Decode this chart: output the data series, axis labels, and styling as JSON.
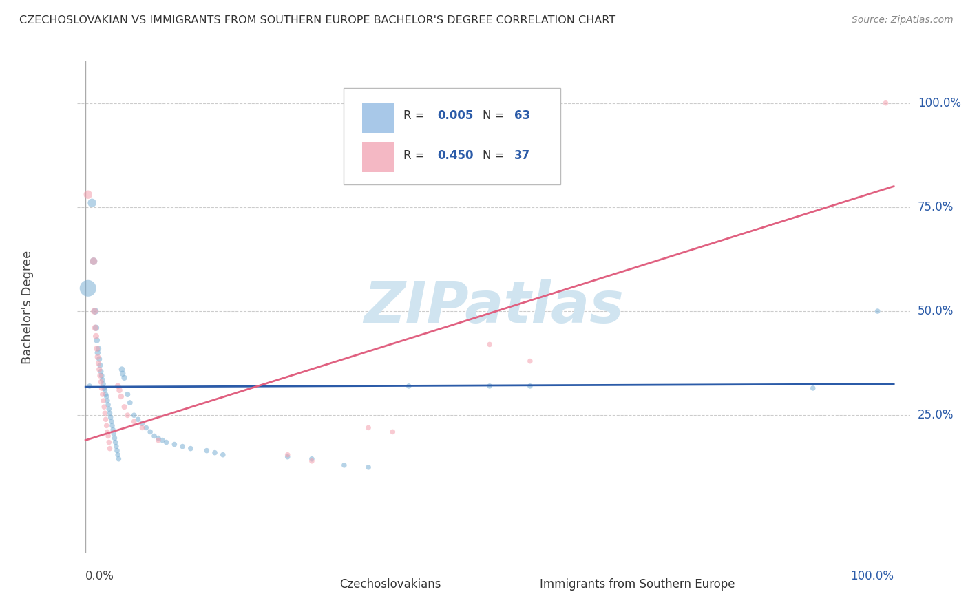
{
  "title": "CZECHOSLOVAKIAN VS IMMIGRANTS FROM SOUTHERN EUROPE BACHELOR'S DEGREE CORRELATION CHART",
  "source": "Source: ZipAtlas.com",
  "ylabel": "Bachelor's Degree",
  "ytick_labels": [
    "25.0%",
    "50.0%",
    "75.0%",
    "100.0%"
  ],
  "ytick_positions": [
    0.25,
    0.5,
    0.75,
    1.0
  ],
  "xtick_labels": [
    "0.0%",
    "100.0%"
  ],
  "xtick_positions": [
    0.0,
    1.0
  ],
  "xlim": [
    -0.01,
    1.02
  ],
  "ylim": [
    -0.08,
    1.1
  ],
  "color_blue": "#7BAFD4",
  "color_pink": "#F4A0AE",
  "color_blue_line": "#2B5BA8",
  "color_pink_line": "#E06080",
  "color_blue_legend_box": "#A8C8E8",
  "color_pink_legend_box": "#F4B8C4",
  "watermark_text": "ZIPatlas",
  "watermark_color": "#D0E4F0",
  "background_color": "#FFFFFF",
  "grid_color": "#CCCCCC",
  "blue_line_x": [
    0.0,
    1.0
  ],
  "blue_line_y": [
    0.318,
    0.325
  ],
  "pink_line_x": [
    0.0,
    1.0
  ],
  "pink_line_y": [
    0.19,
    0.8
  ],
  "blue_dots": [
    [
      0.003,
      0.555
    ],
    [
      0.008,
      0.76
    ],
    [
      0.01,
      0.62
    ],
    [
      0.012,
      0.5
    ],
    [
      0.013,
      0.46
    ],
    [
      0.014,
      0.43
    ],
    [
      0.015,
      0.4
    ],
    [
      0.016,
      0.41
    ],
    [
      0.017,
      0.385
    ],
    [
      0.018,
      0.37
    ],
    [
      0.019,
      0.355
    ],
    [
      0.02,
      0.345
    ],
    [
      0.021,
      0.335
    ],
    [
      0.022,
      0.325
    ],
    [
      0.023,
      0.315
    ],
    [
      0.024,
      0.31
    ],
    [
      0.025,
      0.3
    ],
    [
      0.026,
      0.295
    ],
    [
      0.027,
      0.285
    ],
    [
      0.028,
      0.275
    ],
    [
      0.029,
      0.265
    ],
    [
      0.03,
      0.255
    ],
    [
      0.031,
      0.245
    ],
    [
      0.032,
      0.235
    ],
    [
      0.033,
      0.225
    ],
    [
      0.034,
      0.215
    ],
    [
      0.035,
      0.205
    ],
    [
      0.036,
      0.195
    ],
    [
      0.037,
      0.185
    ],
    [
      0.038,
      0.175
    ],
    [
      0.039,
      0.165
    ],
    [
      0.04,
      0.155
    ],
    [
      0.041,
      0.145
    ],
    [
      0.045,
      0.36
    ],
    [
      0.046,
      0.35
    ],
    [
      0.048,
      0.34
    ],
    [
      0.052,
      0.3
    ],
    [
      0.055,
      0.28
    ],
    [
      0.06,
      0.25
    ],
    [
      0.065,
      0.24
    ],
    [
      0.07,
      0.23
    ],
    [
      0.075,
      0.22
    ],
    [
      0.08,
      0.21
    ],
    [
      0.085,
      0.2
    ],
    [
      0.09,
      0.195
    ],
    [
      0.095,
      0.19
    ],
    [
      0.1,
      0.185
    ],
    [
      0.11,
      0.18
    ],
    [
      0.12,
      0.175
    ],
    [
      0.13,
      0.17
    ],
    [
      0.15,
      0.165
    ],
    [
      0.16,
      0.16
    ],
    [
      0.17,
      0.155
    ],
    [
      0.25,
      0.15
    ],
    [
      0.28,
      0.145
    ],
    [
      0.32,
      0.13
    ],
    [
      0.35,
      0.125
    ],
    [
      0.4,
      0.32
    ],
    [
      0.5,
      0.32
    ],
    [
      0.55,
      0.32
    ],
    [
      0.9,
      0.315
    ],
    [
      0.98,
      0.5
    ],
    [
      0.005,
      0.32
    ]
  ],
  "blue_sizes": [
    300,
    80,
    60,
    50,
    45,
    40,
    38,
    36,
    35,
    34,
    33,
    32,
    31,
    30,
    30,
    30,
    30,
    30,
    30,
    30,
    30,
    30,
    30,
    30,
    30,
    30,
    30,
    30,
    30,
    30,
    30,
    30,
    30,
    40,
    38,
    36,
    34,
    32,
    30,
    30,
    30,
    30,
    30,
    30,
    30,
    30,
    30,
    30,
    30,
    30,
    30,
    30,
    30,
    30,
    30,
    30,
    30,
    30,
    30,
    30,
    30,
    30,
    30
  ],
  "pink_dots": [
    [
      0.003,
      0.78
    ],
    [
      0.01,
      0.62
    ],
    [
      0.011,
      0.5
    ],
    [
      0.012,
      0.46
    ],
    [
      0.013,
      0.44
    ],
    [
      0.014,
      0.41
    ],
    [
      0.015,
      0.39
    ],
    [
      0.016,
      0.375
    ],
    [
      0.017,
      0.36
    ],
    [
      0.018,
      0.345
    ],
    [
      0.019,
      0.33
    ],
    [
      0.02,
      0.315
    ],
    [
      0.021,
      0.3
    ],
    [
      0.022,
      0.285
    ],
    [
      0.023,
      0.27
    ],
    [
      0.024,
      0.255
    ],
    [
      0.025,
      0.24
    ],
    [
      0.026,
      0.225
    ],
    [
      0.027,
      0.21
    ],
    [
      0.028,
      0.2
    ],
    [
      0.029,
      0.185
    ],
    [
      0.03,
      0.17
    ],
    [
      0.04,
      0.32
    ],
    [
      0.042,
      0.31
    ],
    [
      0.044,
      0.295
    ],
    [
      0.048,
      0.27
    ],
    [
      0.052,
      0.25
    ],
    [
      0.06,
      0.235
    ],
    [
      0.07,
      0.22
    ],
    [
      0.09,
      0.19
    ],
    [
      0.25,
      0.155
    ],
    [
      0.28,
      0.14
    ],
    [
      0.35,
      0.22
    ],
    [
      0.38,
      0.21
    ],
    [
      0.5,
      0.42
    ],
    [
      0.55,
      0.38
    ],
    [
      0.99,
      1.0
    ]
  ],
  "pink_sizes": [
    80,
    60,
    50,
    45,
    42,
    40,
    38,
    36,
    35,
    34,
    33,
    32,
    31,
    30,
    30,
    30,
    30,
    30,
    30,
    30,
    30,
    30,
    40,
    38,
    36,
    34,
    32,
    30,
    30,
    30,
    30,
    30,
    30,
    30,
    30,
    30,
    30
  ],
  "legend_r1_label": "R = ",
  "legend_r1_val": "0.005",
  "legend_n1_label": "N = ",
  "legend_n1_val": "63",
  "legend_r2_label": "R = ",
  "legend_r2_val": "0.450",
  "legend_n2_label": "N = ",
  "legend_n2_val": "37",
  "bottom_label1": "Czechoslovakians",
  "bottom_label2": "Immigrants from Southern Europe"
}
